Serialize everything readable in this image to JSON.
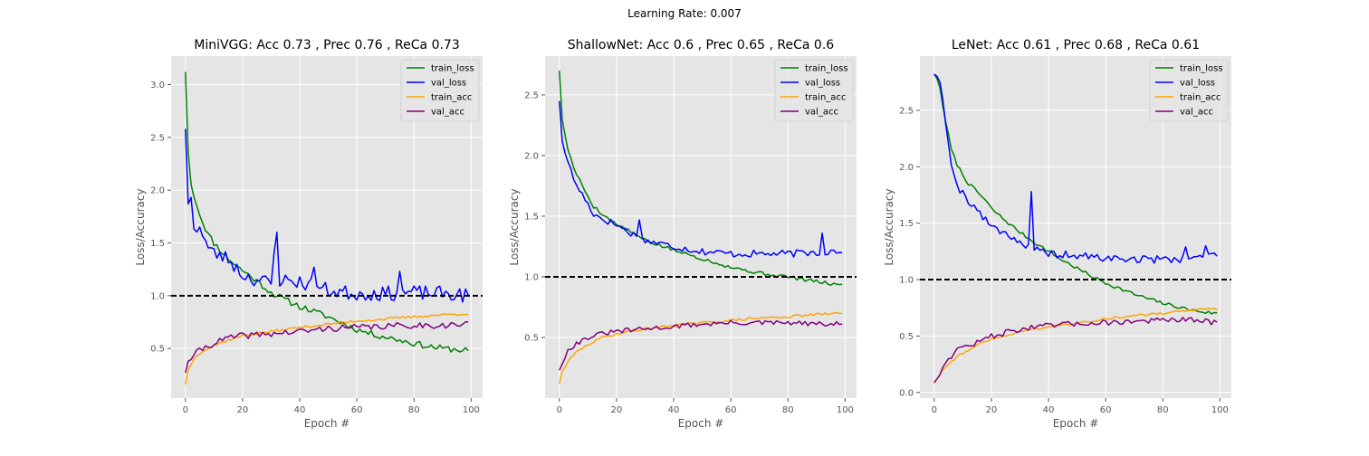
{
  "figure": {
    "suptitle": "Learning Rate: 0.007"
  },
  "colors": {
    "train_loss": "#008000",
    "val_loss": "#0000ff",
    "train_acc": "#ffa500",
    "val_acc": "#800080",
    "baseline": "#000000",
    "panel_bg": "#e5e5e5",
    "grid": "#ffffff"
  },
  "chart_data": [
    {
      "type": "line",
      "title": "MiniVGG: Acc 0.73 , Prec 0.76 , ReCa 0.73",
      "xlabel": "Epoch #",
      "ylabel": "Loss/Accuracy",
      "xlim": [
        -5,
        104
      ],
      "ylim": [
        0.03,
        3.27
      ],
      "xticks": [
        0,
        20,
        40,
        60,
        80,
        100
      ],
      "yticks": [
        0.5,
        1.0,
        1.5,
        2.0,
        2.5,
        3.0
      ],
      "ytick_labels": [
        "0.5",
        "1.0",
        "1.5",
        "2.0",
        "2.5",
        "3.0"
      ],
      "hline": 1.0,
      "grid": true,
      "legend_position": "top-right",
      "series": [
        {
          "name": "train_loss",
          "color": "#008000",
          "anchors": [
            [
              0,
              3.12
            ],
            [
              1,
              2.35
            ],
            [
              2,
              2.05
            ],
            [
              4,
              1.85
            ],
            [
              6,
              1.7
            ],
            [
              8,
              1.58
            ],
            [
              10,
              1.5
            ],
            [
              14,
              1.38
            ],
            [
              18,
              1.28
            ],
            [
              22,
              1.2
            ],
            [
              26,
              1.12
            ],
            [
              30,
              1.03
            ],
            [
              35,
              0.96
            ],
            [
              40,
              0.9
            ],
            [
              45,
              0.85
            ],
            [
              50,
              0.8
            ],
            [
              55,
              0.74
            ],
            [
              60,
              0.68
            ],
            [
              65,
              0.64
            ],
            [
              70,
              0.61
            ],
            [
              75,
              0.58
            ],
            [
              80,
              0.55
            ],
            [
              85,
              0.52
            ],
            [
              90,
              0.5
            ],
            [
              95,
              0.49
            ],
            [
              99,
              0.48
            ]
          ],
          "noise": 0.03,
          "seed": 11
        },
        {
          "name": "val_loss",
          "color": "#0000ff",
          "anchors": [
            [
              0,
              2.58
            ],
            [
              1,
              1.87
            ],
            [
              2,
              1.93
            ],
            [
              3,
              1.63
            ],
            [
              5,
              1.65
            ],
            [
              8,
              1.45
            ],
            [
              10,
              1.4
            ],
            [
              15,
              1.35
            ],
            [
              20,
              1.2
            ],
            [
              25,
              1.15
            ],
            [
              30,
              1.12
            ],
            [
              32,
              1.6
            ],
            [
              33,
              1.15
            ],
            [
              40,
              1.13
            ],
            [
              50,
              1.05
            ],
            [
              60,
              1.02
            ],
            [
              70,
              1.02
            ],
            [
              80,
              1.03
            ],
            [
              90,
              1.02
            ],
            [
              99,
              1.0
            ]
          ],
          "noise": 0.07,
          "seed": 23,
          "spikes": [
            [
              32,
              1.6
            ],
            [
              45,
              1.27
            ],
            [
              75,
              1.23
            ]
          ]
        },
        {
          "name": "train_acc",
          "color": "#ffa500",
          "anchors": [
            [
              0,
              0.16
            ],
            [
              1,
              0.3
            ],
            [
              3,
              0.4
            ],
            [
              6,
              0.48
            ],
            [
              10,
              0.53
            ],
            [
              15,
              0.58
            ],
            [
              20,
              0.62
            ],
            [
              30,
              0.66
            ],
            [
              40,
              0.7
            ],
            [
              50,
              0.73
            ],
            [
              60,
              0.76
            ],
            [
              70,
              0.78
            ],
            [
              80,
              0.8
            ],
            [
              90,
              0.82
            ],
            [
              99,
              0.83
            ]
          ],
          "noise": 0.012,
          "seed": 37
        },
        {
          "name": "val_acc",
          "color": "#800080",
          "anchors": [
            [
              0,
              0.27
            ],
            [
              1,
              0.38
            ],
            [
              3,
              0.44
            ],
            [
              6,
              0.5
            ],
            [
              10,
              0.55
            ],
            [
              15,
              0.6
            ],
            [
              20,
              0.62
            ],
            [
              30,
              0.64
            ],
            [
              40,
              0.66
            ],
            [
              50,
              0.69
            ],
            [
              60,
              0.7
            ],
            [
              70,
              0.71
            ],
            [
              80,
              0.72
            ],
            [
              90,
              0.72
            ],
            [
              99,
              0.73
            ]
          ],
          "noise": 0.03,
          "seed": 41
        }
      ]
    },
    {
      "type": "line",
      "title": "ShallowNet: Acc 0.6 , Prec 0.65 , ReCa 0.6",
      "xlabel": "Epoch #",
      "ylabel": "Loss/Accuracy",
      "xlim": [
        -5,
        104
      ],
      "ylim": [
        0.0,
        2.82
      ],
      "xticks": [
        0,
        20,
        40,
        60,
        80,
        100
      ],
      "yticks": [
        0.5,
        1.0,
        1.5,
        2.0,
        2.5
      ],
      "ytick_labels": [
        "0.5",
        "1.0",
        "1.5",
        "2.0",
        "2.5"
      ],
      "hline": 1.0,
      "grid": true,
      "legend_position": "top-right",
      "series": [
        {
          "name": "train_loss",
          "color": "#008000",
          "anchors": [
            [
              0,
              2.7
            ],
            [
              1,
              2.3
            ],
            [
              3,
              2.05
            ],
            [
              5,
              1.9
            ],
            [
              8,
              1.75
            ],
            [
              12,
              1.58
            ],
            [
              16,
              1.5
            ],
            [
              20,
              1.43
            ],
            [
              25,
              1.37
            ],
            [
              30,
              1.3
            ],
            [
              40,
              1.22
            ],
            [
              50,
              1.15
            ],
            [
              60,
              1.08
            ],
            [
              70,
              1.03
            ],
            [
              80,
              1.0
            ],
            [
              90,
              0.96
            ],
            [
              99,
              0.93
            ]
          ],
          "noise": 0.015,
          "seed": 5
        },
        {
          "name": "val_loss",
          "color": "#0000ff",
          "anchors": [
            [
              0,
              2.45
            ],
            [
              1,
              2.12
            ],
            [
              3,
              1.95
            ],
            [
              5,
              1.8
            ],
            [
              8,
              1.68
            ],
            [
              10,
              1.6
            ],
            [
              12,
              1.52
            ],
            [
              15,
              1.48
            ],
            [
              20,
              1.43
            ],
            [
              25,
              1.36
            ],
            [
              30,
              1.3
            ],
            [
              40,
              1.25
            ],
            [
              50,
              1.21
            ],
            [
              60,
              1.19
            ],
            [
              70,
              1.19
            ],
            [
              80,
              1.19
            ],
            [
              90,
              1.2
            ],
            [
              99,
              1.22
            ]
          ],
          "noise": 0.03,
          "seed": 17,
          "spikes": [
            [
              28,
              1.47
            ],
            [
              92,
              1.36
            ]
          ]
        },
        {
          "name": "train_acc",
          "color": "#ffa500",
          "anchors": [
            [
              0,
              0.12
            ],
            [
              1,
              0.22
            ],
            [
              3,
              0.3
            ],
            [
              6,
              0.38
            ],
            [
              10,
              0.44
            ],
            [
              15,
              0.5
            ],
            [
              20,
              0.53
            ],
            [
              30,
              0.57
            ],
            [
              40,
              0.6
            ],
            [
              50,
              0.62
            ],
            [
              60,
              0.64
            ],
            [
              70,
              0.66
            ],
            [
              80,
              0.67
            ],
            [
              90,
              0.69
            ],
            [
              99,
              0.7
            ]
          ],
          "noise": 0.01,
          "seed": 29
        },
        {
          "name": "val_acc",
          "color": "#800080",
          "anchors": [
            [
              0,
              0.23
            ],
            [
              1,
              0.28
            ],
            [
              3,
              0.4
            ],
            [
              6,
              0.45
            ],
            [
              10,
              0.5
            ],
            [
              15,
              0.53
            ],
            [
              20,
              0.55
            ],
            [
              30,
              0.57
            ],
            [
              40,
              0.59
            ],
            [
              50,
              0.61
            ],
            [
              60,
              0.62
            ],
            [
              70,
              0.62
            ],
            [
              80,
              0.62
            ],
            [
              90,
              0.61
            ],
            [
              99,
              0.61
            ]
          ],
          "noise": 0.02,
          "seed": 31
        }
      ]
    },
    {
      "type": "line",
      "title": "LeNet: Acc 0.61 , Prec 0.68 , ReCa 0.61",
      "xlabel": "Epoch #",
      "ylabel": "Loss/Accuracy",
      "xlim": [
        -5,
        104
      ],
      "ylim": [
        -0.05,
        2.98
      ],
      "xticks": [
        0,
        20,
        40,
        60,
        80,
        100
      ],
      "yticks": [
        0.0,
        0.5,
        1.0,
        1.5,
        2.0,
        2.5
      ],
      "ytick_labels": [
        "0.0",
        "0.5",
        "1.0",
        "1.5",
        "2.0",
        "2.5"
      ],
      "hline": 1.0,
      "grid": true,
      "legend_position": "top-right",
      "series": [
        {
          "name": "train_loss",
          "color": "#008000",
          "anchors": [
            [
              0,
              2.82
            ],
            [
              1,
              2.78
            ],
            [
              2,
              2.7
            ],
            [
              4,
              2.4
            ],
            [
              6,
              2.15
            ],
            [
              8,
              2.02
            ],
            [
              10,
              1.93
            ],
            [
              12,
              1.85
            ],
            [
              15,
              1.78
            ],
            [
              18,
              1.7
            ],
            [
              20,
              1.63
            ],
            [
              25,
              1.52
            ],
            [
              30,
              1.42
            ],
            [
              35,
              1.33
            ],
            [
              40,
              1.25
            ],
            [
              45,
              1.17
            ],
            [
              50,
              1.1
            ],
            [
              55,
              1.03
            ],
            [
              60,
              0.97
            ],
            [
              65,
              0.92
            ],
            [
              70,
              0.87
            ],
            [
              75,
              0.83
            ],
            [
              80,
              0.79
            ],
            [
              85,
              0.76
            ],
            [
              90,
              0.73
            ],
            [
              95,
              0.71
            ],
            [
              99,
              0.7
            ]
          ],
          "noise": 0.015,
          "seed": 7
        },
        {
          "name": "val_loss",
          "color": "#0000ff",
          "anchors": [
            [
              0,
              2.82
            ],
            [
              1,
              2.8
            ],
            [
              2,
              2.75
            ],
            [
              3,
              2.6
            ],
            [
              5,
              2.2
            ],
            [
              7,
              1.9
            ],
            [
              9,
              1.8
            ],
            [
              12,
              1.7
            ],
            [
              15,
              1.62
            ],
            [
              18,
              1.52
            ],
            [
              22,
              1.45
            ],
            [
              26,
              1.4
            ],
            [
              30,
              1.33
            ],
            [
              35,
              1.26
            ],
            [
              40,
              1.23
            ],
            [
              50,
              1.21
            ],
            [
              60,
              1.19
            ],
            [
              70,
              1.18
            ],
            [
              80,
              1.18
            ],
            [
              90,
              1.19
            ],
            [
              99,
              1.22
            ]
          ],
          "noise": 0.035,
          "seed": 19,
          "spikes": [
            [
              34,
              1.78
            ],
            [
              88,
              1.29
            ],
            [
              95,
              1.3
            ]
          ]
        },
        {
          "name": "train_acc",
          "color": "#ffa500",
          "anchors": [
            [
              0,
              0.08
            ],
            [
              1,
              0.12
            ],
            [
              3,
              0.2
            ],
            [
              6,
              0.28
            ],
            [
              10,
              0.35
            ],
            [
              15,
              0.42
            ],
            [
              20,
              0.47
            ],
            [
              30,
              0.54
            ],
            [
              40,
              0.58
            ],
            [
              50,
              0.62
            ],
            [
              60,
              0.65
            ],
            [
              70,
              0.68
            ],
            [
              80,
              0.7
            ],
            [
              90,
              0.73
            ],
            [
              99,
              0.74
            ]
          ],
          "noise": 0.01,
          "seed": 43
        },
        {
          "name": "val_acc",
          "color": "#800080",
          "anchors": [
            [
              0,
              0.09
            ],
            [
              1,
              0.12
            ],
            [
              3,
              0.22
            ],
            [
              5,
              0.3
            ],
            [
              8,
              0.38
            ],
            [
              10,
              0.4
            ],
            [
              15,
              0.44
            ],
            [
              20,
              0.5
            ],
            [
              30,
              0.56
            ],
            [
              40,
              0.59
            ],
            [
              50,
              0.61
            ],
            [
              60,
              0.62
            ],
            [
              70,
              0.63
            ],
            [
              80,
              0.64
            ],
            [
              90,
              0.64
            ],
            [
              99,
              0.62
            ]
          ],
          "noise": 0.025,
          "seed": 47
        }
      ]
    }
  ]
}
